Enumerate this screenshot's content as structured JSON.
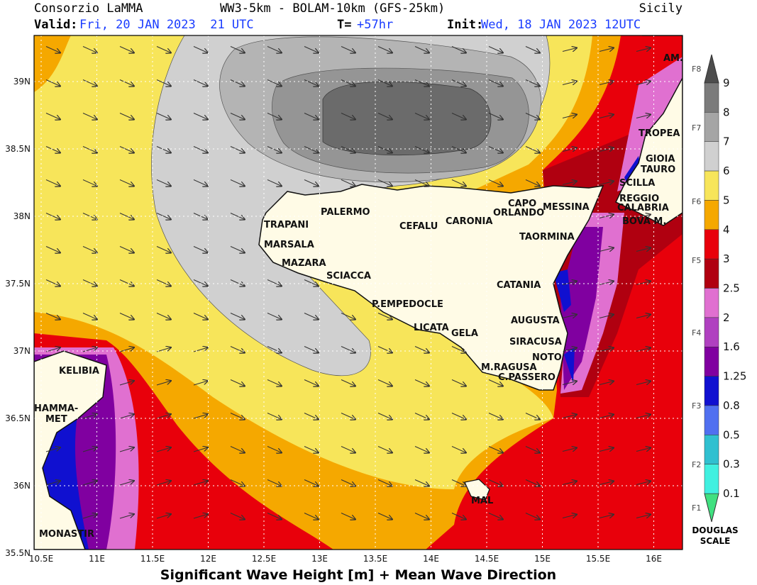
{
  "header": {
    "source": "Consorzio LaMMA",
    "model": "WW3-5km - BOLAM-10km (GFS-25km)",
    "region": "Sicily",
    "valid_label": "Valid:",
    "valid": "Fri, 20 JAN 2023  21 UTC",
    "lead_label": "T=",
    "lead": "+57hr",
    "init_label": "Init:",
    "init": "Wed, 18 JAN 2023 12UTC"
  },
  "lat_ticks": [
    {
      "value": 39,
      "label": "39N"
    },
    {
      "value": 38.5,
      "label": "38.5N"
    },
    {
      "value": 38,
      "label": "38N"
    },
    {
      "value": 37.5,
      "label": "37.5N"
    },
    {
      "value": 37,
      "label": "37N"
    },
    {
      "value": 36.5,
      "label": "36.5N"
    },
    {
      "value": 36,
      "label": "36N"
    },
    {
      "value": 35.5,
      "label": "35.5N"
    }
  ],
  "lon_ticks": [
    {
      "value": 10.5,
      "label": "10.5E"
    },
    {
      "value": 11,
      "label": "11E"
    },
    {
      "value": 11.5,
      "label": "11.5E"
    },
    {
      "value": 12,
      "label": "12E"
    },
    {
      "value": 12.5,
      "label": "12.5E"
    },
    {
      "value": 13,
      "label": "13E"
    },
    {
      "value": 13.5,
      "label": "13.5E"
    },
    {
      "value": 14,
      "label": "14E"
    },
    {
      "value": 14.5,
      "label": "14.5E"
    },
    {
      "value": 15,
      "label": "15E"
    },
    {
      "value": 15.5,
      "label": "15.5E"
    },
    {
      "value": 16,
      "label": "16E"
    }
  ],
  "footer": "Significant Wave Height [m] + Mean Wave Direction",
  "colorbar": {
    "levels": [
      9,
      8,
      7,
      6,
      5,
      4,
      3,
      2.5,
      2,
      1.6,
      1.25,
      0.8,
      0.5,
      0.3,
      0.1
    ],
    "force": [
      "F8",
      "F7",
      "F6",
      "F5",
      "F4",
      "F3",
      "F2",
      "F1"
    ],
    "scale": [
      "DOUGLAS",
      "SCALE"
    ]
  },
  "cities": [
    "AM.",
    "TROPEA",
    "GIOIA",
    "TAURO",
    "SCILLA",
    "REGGIO",
    "CALABRIA",
    "BOVA M.",
    "MESSINA",
    "CAPO",
    "ORLANDO",
    "TAORMINA",
    "CATANIA",
    "AUGUSTA",
    "SIRACUSA",
    "NOTO",
    "M.RAGUSA",
    "C.PASSERO",
    "GELA",
    "LICATA",
    "P.EMPEDOCLE",
    "SCIACCA",
    "MAZARA",
    "MARSALA",
    "TRAPANI",
    "PALERMO",
    "CEFALU",
    "CARONIA",
    "KELIBIA",
    "HAMMA-",
    "MET",
    "MONASTIR",
    "MAL"
  ]
}
